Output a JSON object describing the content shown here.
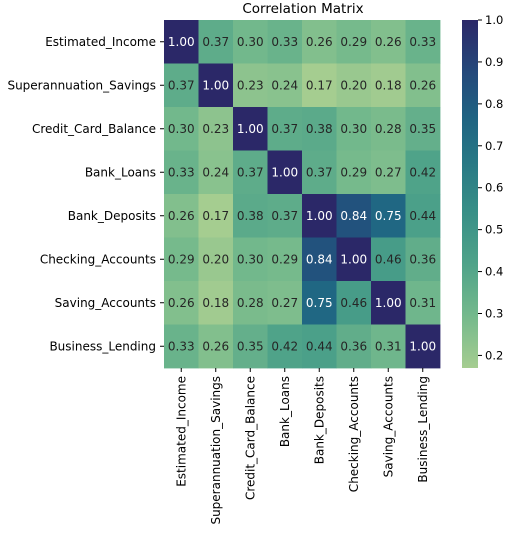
{
  "chart_data": {
    "type": "heatmap",
    "title": "Correlation Matrix",
    "xlabel": "",
    "ylabel": "",
    "variables": [
      "Estimated_Income",
      "Superannuation_Savings",
      "Credit_Card_Balance",
      "Bank_Loans",
      "Bank_Deposits",
      "Checking_Accounts",
      "Saving_Accounts",
      "Business_Lending"
    ],
    "matrix": [
      [
        1.0,
        0.37,
        0.3,
        0.33,
        0.26,
        0.29,
        0.26,
        0.33
      ],
      [
        0.37,
        1.0,
        0.23,
        0.24,
        0.17,
        0.2,
        0.18,
        0.26
      ],
      [
        0.3,
        0.23,
        1.0,
        0.37,
        0.38,
        0.3,
        0.28,
        0.35
      ],
      [
        0.33,
        0.24,
        0.37,
        1.0,
        0.37,
        0.29,
        0.27,
        0.42
      ],
      [
        0.26,
        0.17,
        0.38,
        0.37,
        1.0,
        0.84,
        0.75,
        0.44
      ],
      [
        0.29,
        0.2,
        0.3,
        0.29,
        0.84,
        1.0,
        0.46,
        0.36
      ],
      [
        0.26,
        0.18,
        0.28,
        0.27,
        0.75,
        0.46,
        1.0,
        0.31
      ],
      [
        0.33,
        0.26,
        0.35,
        0.42,
        0.44,
        0.36,
        0.31,
        1.0
      ]
    ],
    "annotation_format": "0.00",
    "colormap": "crest",
    "color_range": [
      0.17,
      1.0
    ],
    "colorbar_ticks": [
      0.2,
      0.3,
      0.4,
      0.5,
      0.6,
      0.7,
      0.8,
      0.9,
      1.0
    ],
    "colorbar_position": "right",
    "grid": false
  }
}
